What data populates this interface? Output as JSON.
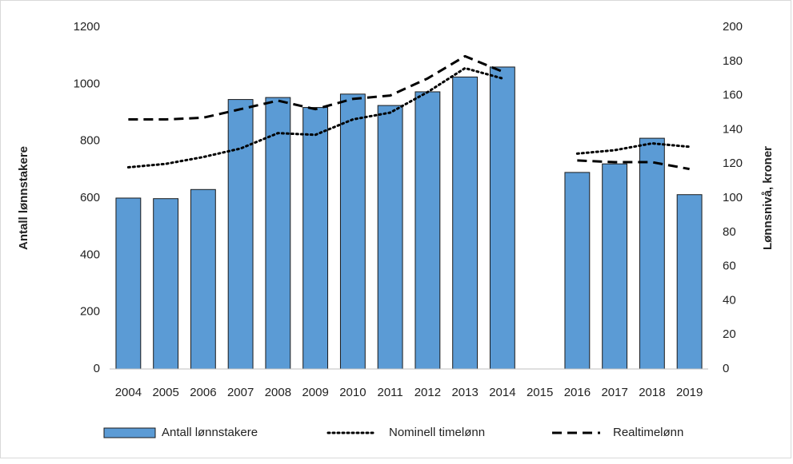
{
  "chart_data": {
    "type": "bar",
    "categories": [
      "2004",
      "2005",
      "2006",
      "2007",
      "2008",
      "2009",
      "2010",
      "2011",
      "2012",
      "2013",
      "2014",
      "2015",
      "2016",
      "2017",
      "2018",
      "2019"
    ],
    "series": [
      {
        "name": "Antall lønnstakere",
        "type": "bar",
        "color": "#5b9bd5",
        "values": [
          600,
          598,
          630,
          946,
          953,
          918,
          965,
          925,
          973,
          1025,
          1060,
          null,
          690,
          720,
          810,
          612
        ]
      },
      {
        "name": "Nominell timelønn",
        "type": "line",
        "style": "dotted",
        "axis": "y2",
        "color": "#000000",
        "values": [
          118,
          120,
          124,
          129,
          138,
          137,
          146,
          150,
          162,
          176,
          170,
          null,
          126,
          128,
          132,
          130
        ]
      },
      {
        "name": "Realtimelønn",
        "type": "line",
        "style": "dashed",
        "axis": "y2",
        "color": "#000000",
        "values": [
          146,
          146,
          147,
          152,
          157,
          152,
          158,
          160,
          170,
          183,
          174,
          null,
          122,
          121,
          121,
          117
        ]
      }
    ],
    "ylabel": "Antall lønnstakere",
    "y2label": "Lønnsnivå, kroner",
    "ylim": [
      0,
      1200
    ],
    "yticks": [
      0,
      200,
      400,
      600,
      800,
      1000,
      1200
    ],
    "y2lim": [
      0,
      200
    ],
    "y2ticks": [
      0,
      20,
      40,
      60,
      80,
      100,
      120,
      140,
      160,
      180,
      200
    ],
    "grid": false,
    "legend": "bottom"
  }
}
